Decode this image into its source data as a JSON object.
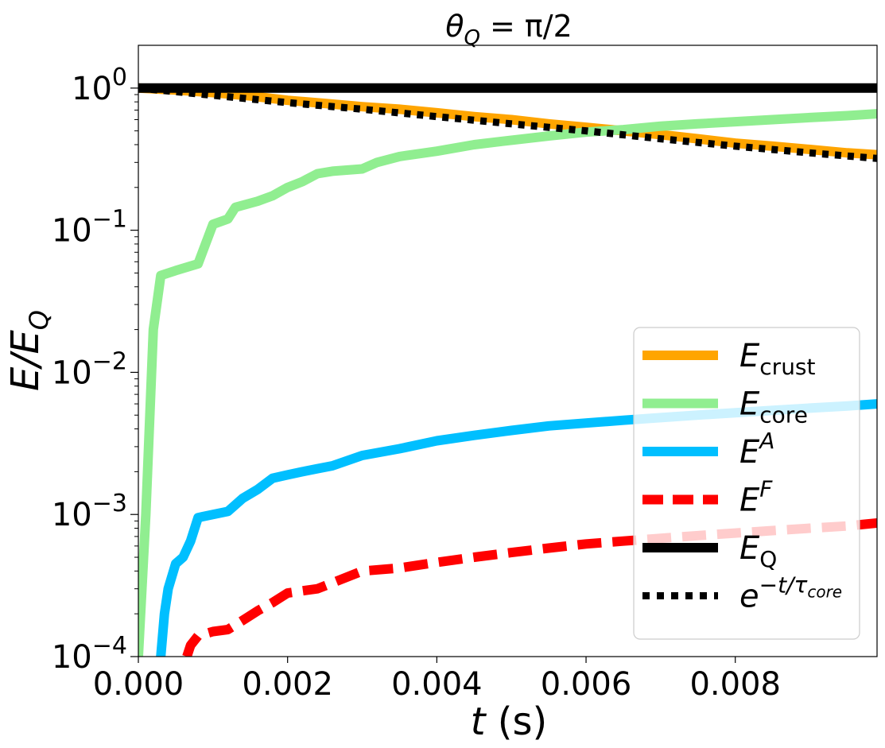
{
  "chart_data": {
    "type": "line",
    "title": "θ_Q = π/2",
    "title_parts": {
      "main": "θ",
      "sub": "Q",
      "rest": " = π/2"
    },
    "xlabel": "t (s)",
    "xlabel_parts": {
      "var": "t",
      "unit": " (s)"
    },
    "ylabel": "E/E_Q",
    "ylabel_parts": {
      "main": "E/E",
      "sub": "Q"
    },
    "xscale": "linear",
    "yscale": "log",
    "xlim": [
      0.0,
      0.0099
    ],
    "ylim": [
      0.0001,
      2.0
    ],
    "xticks": [
      0.0,
      0.002,
      0.004,
      0.006,
      0.008
    ],
    "xtick_labels": [
      "0.000",
      "0.002",
      "0.004",
      "0.006",
      "0.008"
    ],
    "yticks": [
      0.0001,
      0.001,
      0.01,
      0.1,
      1.0
    ],
    "ytick_labels": [
      {
        "base": "10",
        "exp": "−4"
      },
      {
        "base": "10",
        "exp": "−3"
      },
      {
        "base": "10",
        "exp": "−2"
      },
      {
        "base": "10",
        "exp": "−1"
      },
      {
        "base": "10",
        "exp": "0"
      }
    ],
    "legend_position": "lower-right",
    "series": [
      {
        "name": "E_crust",
        "label_main": "E",
        "label_sub": "crust",
        "label_sup": "",
        "color": "#FFA500",
        "style": "solid",
        "x": [
          0.0,
          0.0005,
          0.001,
          0.0015,
          0.002,
          0.0025,
          0.003,
          0.0035,
          0.004,
          0.0045,
          0.005,
          0.0055,
          0.006,
          0.0065,
          0.007,
          0.0075,
          0.008,
          0.0085,
          0.009,
          0.0095,
          0.0099
        ],
        "y": [
          1.0,
          0.97,
          0.93,
          0.88,
          0.82,
          0.78,
          0.74,
          0.71,
          0.67,
          0.63,
          0.6,
          0.56,
          0.53,
          0.5,
          0.47,
          0.44,
          0.41,
          0.39,
          0.37,
          0.35,
          0.34
        ]
      },
      {
        "name": "E_core",
        "label_main": "E",
        "label_sub": "core",
        "label_sup": "",
        "color": "#90EE90",
        "style": "solid",
        "x": [
          0.0,
          0.0001,
          0.0002,
          0.0003,
          0.0005,
          0.0008,
          0.0009,
          0.001,
          0.0012,
          0.0013,
          0.0016,
          0.0018,
          0.002,
          0.0022,
          0.0024,
          0.0026,
          0.003,
          0.0032,
          0.0035,
          0.004,
          0.0045,
          0.005,
          0.0055,
          0.006,
          0.0065,
          0.007,
          0.0075,
          0.008,
          0.0085,
          0.009,
          0.0095,
          0.0099
        ],
        "y": [
          0.0001,
          0.001,
          0.02,
          0.048,
          0.052,
          0.058,
          0.08,
          0.11,
          0.12,
          0.145,
          0.16,
          0.175,
          0.2,
          0.22,
          0.25,
          0.26,
          0.27,
          0.3,
          0.33,
          0.36,
          0.4,
          0.43,
          0.46,
          0.49,
          0.51,
          0.54,
          0.56,
          0.58,
          0.6,
          0.62,
          0.64,
          0.66
        ]
      },
      {
        "name": "E^A",
        "label_main": "E",
        "label_sub": "",
        "label_sup": "A",
        "color": "#00BFFF",
        "style": "solid",
        "x": [
          0.0003,
          0.00035,
          0.0004,
          0.0005,
          0.0006,
          0.0007,
          0.0008,
          0.001,
          0.0012,
          0.0014,
          0.0016,
          0.0018,
          0.002,
          0.0022,
          0.0024,
          0.0026,
          0.003,
          0.0035,
          0.004,
          0.0045,
          0.005,
          0.0055,
          0.006,
          0.0065,
          0.007,
          0.0075,
          0.008,
          0.0085,
          0.009,
          0.0095,
          0.0099
        ],
        "y": [
          0.0001,
          0.0002,
          0.0003,
          0.00045,
          0.0005,
          0.00065,
          0.00095,
          0.001,
          0.00105,
          0.0013,
          0.0015,
          0.0018,
          0.0019,
          0.002,
          0.0021,
          0.0022,
          0.0026,
          0.0029,
          0.0033,
          0.0036,
          0.0039,
          0.0042,
          0.0044,
          0.0046,
          0.0048,
          0.005,
          0.0052,
          0.0054,
          0.0056,
          0.0058,
          0.006
        ]
      },
      {
        "name": "E^F",
        "label_main": "E",
        "label_sub": "",
        "label_sup": "F",
        "color": "#FF0000",
        "style": "dashed",
        "x": [
          0.00065,
          0.0007,
          0.0008,
          0.001,
          0.0012,
          0.0014,
          0.0016,
          0.0018,
          0.002,
          0.0022,
          0.0024,
          0.0026,
          0.003,
          0.0035,
          0.004,
          0.0045,
          0.005,
          0.0055,
          0.006,
          0.0065,
          0.007,
          0.0075,
          0.008,
          0.0085,
          0.009,
          0.0095,
          0.0099
        ],
        "y": [
          0.0001,
          0.00012,
          0.00014,
          0.00015,
          0.000155,
          0.00018,
          0.00021,
          0.00024,
          0.00028,
          0.00029,
          0.0003,
          0.00033,
          0.0004,
          0.00042,
          0.00046,
          0.0005,
          0.00054,
          0.00058,
          0.00062,
          0.00065,
          0.00068,
          0.00071,
          0.00074,
          0.00077,
          0.0008,
          0.00083,
          0.00087
        ]
      },
      {
        "name": "E_Q",
        "label_main": "E",
        "label_sub": "Q",
        "label_sup": "",
        "color": "#000000",
        "style": "solid",
        "x": [
          0.0,
          0.0099
        ],
        "y": [
          1.0,
          1.0
        ]
      },
      {
        "name": "e^{-t/τ_core}",
        "label_main": "e",
        "label_sub": "",
        "label_sup": "−t/τ",
        "label_sup_sub": "core",
        "color": "#000000",
        "style": "dotted",
        "x": [
          0.0,
          0.001,
          0.002,
          0.003,
          0.004,
          0.005,
          0.006,
          0.007,
          0.008,
          0.009,
          0.0099
        ],
        "y": [
          1.0,
          0.89,
          0.79,
          0.71,
          0.63,
          0.56,
          0.5,
          0.44,
          0.39,
          0.35,
          0.32
        ]
      }
    ]
  }
}
